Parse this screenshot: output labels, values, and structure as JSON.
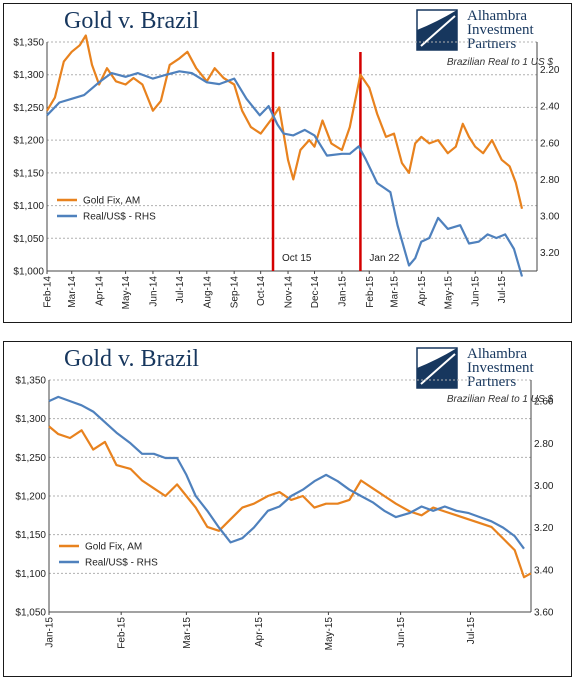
{
  "brand": {
    "line1": "Alhambra",
    "line2": "Investment",
    "line3": "Partners"
  },
  "chart_data": [
    {
      "type": "line",
      "title": "Gold v. Brazil",
      "subtitle": "Brazilian Real to 1 US $",
      "x_range": [
        "2014-02-01",
        "2015-08-10"
      ],
      "x_ticks": [
        "Feb-14",
        "Mar-14",
        "Apr-14",
        "May-14",
        "Jun-14",
        "Jul-14",
        "Aug-14",
        "Sep-14",
        "Oct-14",
        "Nov-14",
        "Dec-14",
        "Jan-15",
        "Feb-15",
        "Mar-15",
        "Apr-15",
        "May-15",
        "Jun-15",
        "Jul-15"
      ],
      "y_left": {
        "ticks": [
          "$1,000",
          "$1,050",
          "$1,100",
          "$1,150",
          "$1,200",
          "$1,250",
          "$1,300",
          "$1,350"
        ],
        "range": [
          1000,
          1350
        ]
      },
      "y_right": {
        "ticks": [
          "2.20",
          "2.40",
          "2.60",
          "2.80",
          "3.00",
          "3.20"
        ],
        "range": [
          3.3,
          2.05
        ],
        "inverted": true
      },
      "grid": "horizontal dashed",
      "legend_position": "left",
      "annotations": [
        {
          "label": "Oct 15",
          "date": "2014-10-15",
          "color": "#d40000"
        },
        {
          "label": "Jan 22",
          "date": "2015-01-22",
          "color": "#d40000"
        }
      ],
      "series": [
        {
          "name": "Gold Fix, AM",
          "axis": "left",
          "color": "#e8821e",
          "points": [
            [
              "2014-02-01",
              1245
            ],
            [
              "2014-02-10",
              1265
            ],
            [
              "2014-02-20",
              1320
            ],
            [
              "2014-03-01",
              1335
            ],
            [
              "2014-03-10",
              1345
            ],
            [
              "2014-03-17",
              1360
            ],
            [
              "2014-03-24",
              1315
            ],
            [
              "2014-04-01",
              1285
            ],
            [
              "2014-04-10",
              1310
            ],
            [
              "2014-04-20",
              1290
            ],
            [
              "2014-05-01",
              1285
            ],
            [
              "2014-05-10",
              1295
            ],
            [
              "2014-05-20",
              1285
            ],
            [
              "2014-06-01",
              1245
            ],
            [
              "2014-06-10",
              1260
            ],
            [
              "2014-06-20",
              1315
            ],
            [
              "2014-07-01",
              1325
            ],
            [
              "2014-07-10",
              1335
            ],
            [
              "2014-07-20",
              1310
            ],
            [
              "2014-08-01",
              1290
            ],
            [
              "2014-08-10",
              1310
            ],
            [
              "2014-08-20",
              1295
            ],
            [
              "2014-09-01",
              1285
            ],
            [
              "2014-09-10",
              1245
            ],
            [
              "2014-09-20",
              1220
            ],
            [
              "2014-10-01",
              1210
            ],
            [
              "2014-10-15",
              1235
            ],
            [
              "2014-10-22",
              1250
            ],
            [
              "2014-11-01",
              1170
            ],
            [
              "2014-11-07",
              1140
            ],
            [
              "2014-11-15",
              1185
            ],
            [
              "2014-11-25",
              1200
            ],
            [
              "2014-12-01",
              1190
            ],
            [
              "2014-12-10",
              1230
            ],
            [
              "2014-12-20",
              1195
            ],
            [
              "2015-01-01",
              1185
            ],
            [
              "2015-01-10",
              1220
            ],
            [
              "2015-01-22",
              1300
            ],
            [
              "2015-02-01",
              1280
            ],
            [
              "2015-02-10",
              1240
            ],
            [
              "2015-02-20",
              1205
            ],
            [
              "2015-03-01",
              1210
            ],
            [
              "2015-03-10",
              1165
            ],
            [
              "2015-03-18",
              1150
            ],
            [
              "2015-03-25",
              1195
            ],
            [
              "2015-04-01",
              1205
            ],
            [
              "2015-04-10",
              1195
            ],
            [
              "2015-04-20",
              1200
            ],
            [
              "2015-05-01",
              1180
            ],
            [
              "2015-05-10",
              1190
            ],
            [
              "2015-05-18",
              1225
            ],
            [
              "2015-05-25",
              1205
            ],
            [
              "2015-06-01",
              1190
            ],
            [
              "2015-06-10",
              1180
            ],
            [
              "2015-06-20",
              1200
            ],
            [
              "2015-07-01",
              1170
            ],
            [
              "2015-07-10",
              1160
            ],
            [
              "2015-07-17",
              1135
            ],
            [
              "2015-07-24",
              1095
            ]
          ]
        },
        {
          "name": "Real/US$ - RHS",
          "axis": "right",
          "color": "#4f81bd",
          "points": [
            [
              "2014-02-01",
              2.45
            ],
            [
              "2014-02-15",
              2.38
            ],
            [
              "2014-03-01",
              2.36
            ],
            [
              "2014-03-15",
              2.34
            ],
            [
              "2014-04-01",
              2.27
            ],
            [
              "2014-04-15",
              2.22
            ],
            [
              "2014-05-01",
              2.24
            ],
            [
              "2014-05-15",
              2.22
            ],
            [
              "2014-06-01",
              2.25
            ],
            [
              "2014-06-15",
              2.23
            ],
            [
              "2014-07-01",
              2.21
            ],
            [
              "2014-07-15",
              2.22
            ],
            [
              "2014-08-01",
              2.27
            ],
            [
              "2014-08-15",
              2.28
            ],
            [
              "2014-09-01",
              2.25
            ],
            [
              "2014-09-15",
              2.36
            ],
            [
              "2014-09-30",
              2.45
            ],
            [
              "2014-10-10",
              2.4
            ],
            [
              "2014-10-20",
              2.5
            ],
            [
              "2014-10-27",
              2.55
            ],
            [
              "2014-11-07",
              2.56
            ],
            [
              "2014-11-20",
              2.53
            ],
            [
              "2014-12-01",
              2.56
            ],
            [
              "2014-12-15",
              2.67
            ],
            [
              "2015-01-01",
              2.66
            ],
            [
              "2015-01-10",
              2.66
            ],
            [
              "2015-01-20",
              2.62
            ],
            [
              "2015-01-28",
              2.69
            ],
            [
              "2015-02-10",
              2.82
            ],
            [
              "2015-02-25",
              2.87
            ],
            [
              "2015-03-05",
              3.05
            ],
            [
              "2015-03-18",
              3.27
            ],
            [
              "2015-03-25",
              3.23
            ],
            [
              "2015-04-01",
              3.14
            ],
            [
              "2015-04-10",
              3.12
            ],
            [
              "2015-04-20",
              3.01
            ],
            [
              "2015-05-01",
              3.07
            ],
            [
              "2015-05-15",
              3.05
            ],
            [
              "2015-05-25",
              3.15
            ],
            [
              "2015-06-05",
              3.14
            ],
            [
              "2015-06-15",
              3.1
            ],
            [
              "2015-06-25",
              3.12
            ],
            [
              "2015-07-05",
              3.1
            ],
            [
              "2015-07-15",
              3.18
            ],
            [
              "2015-07-24",
              3.33
            ]
          ]
        }
      ]
    },
    {
      "type": "line",
      "title": "Gold v. Brazil",
      "subtitle": "Brazilian Real to 1 US $",
      "x_range": [
        "2015-01-01",
        "2015-07-27"
      ],
      "x_ticks": [
        "Jan-15",
        "Feb-15",
        "Mar-15",
        "Apr-15",
        "May-15",
        "Jun-15",
        "Jul-15"
      ],
      "y_left": {
        "ticks": [
          "$1,050",
          "$1,100",
          "$1,150",
          "$1,200",
          "$1,250",
          "$1,300",
          "$1,350"
        ],
        "range": [
          1050,
          1350
        ]
      },
      "y_right": {
        "ticks": [
          "2.60",
          "2.80",
          "3.00",
          "3.20",
          "3.40",
          "3.60"
        ],
        "range": [
          3.6,
          2.5
        ],
        "inverted": true
      },
      "grid": "horizontal dashed",
      "legend_position": "left",
      "annotations": [],
      "series": [
        {
          "name": "Gold Fix, AM",
          "axis": "left",
          "color": "#e8821e",
          "points": [
            [
              "2015-01-01",
              1290
            ],
            [
              "2015-01-05",
              1280
            ],
            [
              "2015-01-10",
              1275
            ],
            [
              "2015-01-15",
              1285
            ],
            [
              "2015-01-20",
              1260
            ],
            [
              "2015-01-25",
              1270
            ],
            [
              "2015-01-30",
              1240
            ],
            [
              "2015-02-05",
              1235
            ],
            [
              "2015-02-10",
              1220
            ],
            [
              "2015-02-15",
              1210
            ],
            [
              "2015-02-20",
              1200
            ],
            [
              "2015-02-25",
              1215
            ],
            [
              "2015-03-01",
              1200
            ],
            [
              "2015-03-05",
              1185
            ],
            [
              "2015-03-10",
              1160
            ],
            [
              "2015-03-15",
              1155
            ],
            [
              "2015-03-20",
              1170
            ],
            [
              "2015-03-25",
              1185
            ],
            [
              "2015-03-30",
              1190
            ],
            [
              "2015-04-05",
              1200
            ],
            [
              "2015-04-10",
              1205
            ],
            [
              "2015-04-15",
              1195
            ],
            [
              "2015-04-20",
              1200
            ],
            [
              "2015-04-25",
              1185
            ],
            [
              "2015-04-30",
              1190
            ],
            [
              "2015-05-05",
              1190
            ],
            [
              "2015-05-10",
              1195
            ],
            [
              "2015-05-15",
              1220
            ],
            [
              "2015-05-20",
              1210
            ],
            [
              "2015-05-25",
              1200
            ],
            [
              "2015-05-30",
              1190
            ],
            [
              "2015-06-05",
              1180
            ],
            [
              "2015-06-10",
              1175
            ],
            [
              "2015-06-15",
              1185
            ],
            [
              "2015-06-20",
              1180
            ],
            [
              "2015-06-25",
              1175
            ],
            [
              "2015-06-30",
              1170
            ],
            [
              "2015-07-05",
              1165
            ],
            [
              "2015-07-10",
              1160
            ],
            [
              "2015-07-15",
              1145
            ],
            [
              "2015-07-20",
              1130
            ],
            [
              "2015-07-24",
              1095
            ],
            [
              "2015-07-27",
              1100
            ]
          ]
        },
        {
          "name": "Real/US$ - RHS",
          "axis": "right",
          "color": "#4f81bd",
          "points": [
            [
              "2015-01-01",
              2.6
            ],
            [
              "2015-01-05",
              2.58
            ],
            [
              "2015-01-10",
              2.6
            ],
            [
              "2015-01-15",
              2.62
            ],
            [
              "2015-01-20",
              2.65
            ],
            [
              "2015-01-25",
              2.7
            ],
            [
              "2015-01-30",
              2.75
            ],
            [
              "2015-02-05",
              2.8
            ],
            [
              "2015-02-10",
              2.85
            ],
            [
              "2015-02-15",
              2.85
            ],
            [
              "2015-02-20",
              2.87
            ],
            [
              "2015-02-25",
              2.87
            ],
            [
              "2015-03-01",
              2.95
            ],
            [
              "2015-03-05",
              3.05
            ],
            [
              "2015-03-10",
              3.12
            ],
            [
              "2015-03-15",
              3.2
            ],
            [
              "2015-03-20",
              3.27
            ],
            [
              "2015-03-25",
              3.25
            ],
            [
              "2015-03-30",
              3.2
            ],
            [
              "2015-04-05",
              3.12
            ],
            [
              "2015-04-10",
              3.1
            ],
            [
              "2015-04-15",
              3.05
            ],
            [
              "2015-04-20",
              3.02
            ],
            [
              "2015-04-25",
              2.98
            ],
            [
              "2015-04-30",
              2.95
            ],
            [
              "2015-05-05",
              2.98
            ],
            [
              "2015-05-10",
              3.02
            ],
            [
              "2015-05-15",
              3.05
            ],
            [
              "2015-05-20",
              3.08
            ],
            [
              "2015-05-25",
              3.12
            ],
            [
              "2015-05-30",
              3.15
            ],
            [
              "2015-06-05",
              3.13
            ],
            [
              "2015-06-10",
              3.1
            ],
            [
              "2015-06-15",
              3.12
            ],
            [
              "2015-06-20",
              3.1
            ],
            [
              "2015-06-25",
              3.12
            ],
            [
              "2015-06-30",
              3.13
            ],
            [
              "2015-07-05",
              3.15
            ],
            [
              "2015-07-10",
              3.17
            ],
            [
              "2015-07-15",
              3.2
            ],
            [
              "2015-07-20",
              3.24
            ],
            [
              "2015-07-24",
              3.3
            ]
          ]
        }
      ]
    }
  ]
}
